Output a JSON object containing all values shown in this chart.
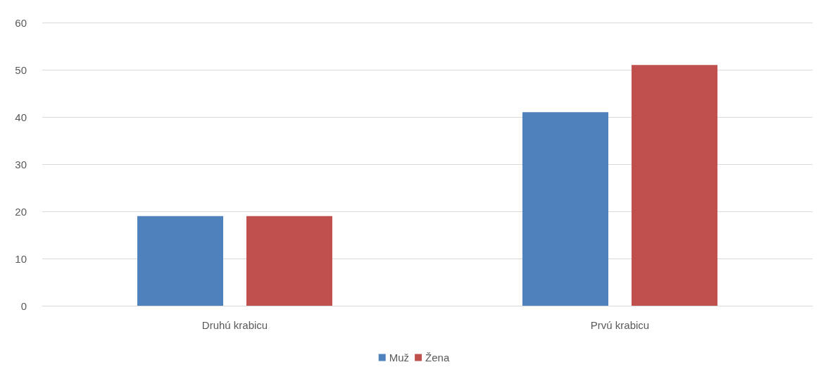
{
  "chart_data": {
    "type": "bar",
    "categories": [
      "Druhú krabicu",
      "Prvú krabicu"
    ],
    "series": [
      {
        "name": "Muž",
        "color": "#4f81bd",
        "values": [
          19,
          41
        ]
      },
      {
        "name": "Žena",
        "color": "#c0504d",
        "values": [
          19,
          51
        ]
      }
    ],
    "ylim": [
      0,
      60
    ],
    "yticks": [
      0,
      10,
      20,
      30,
      40,
      50,
      60
    ],
    "grid": "y",
    "legend": "bottom"
  }
}
